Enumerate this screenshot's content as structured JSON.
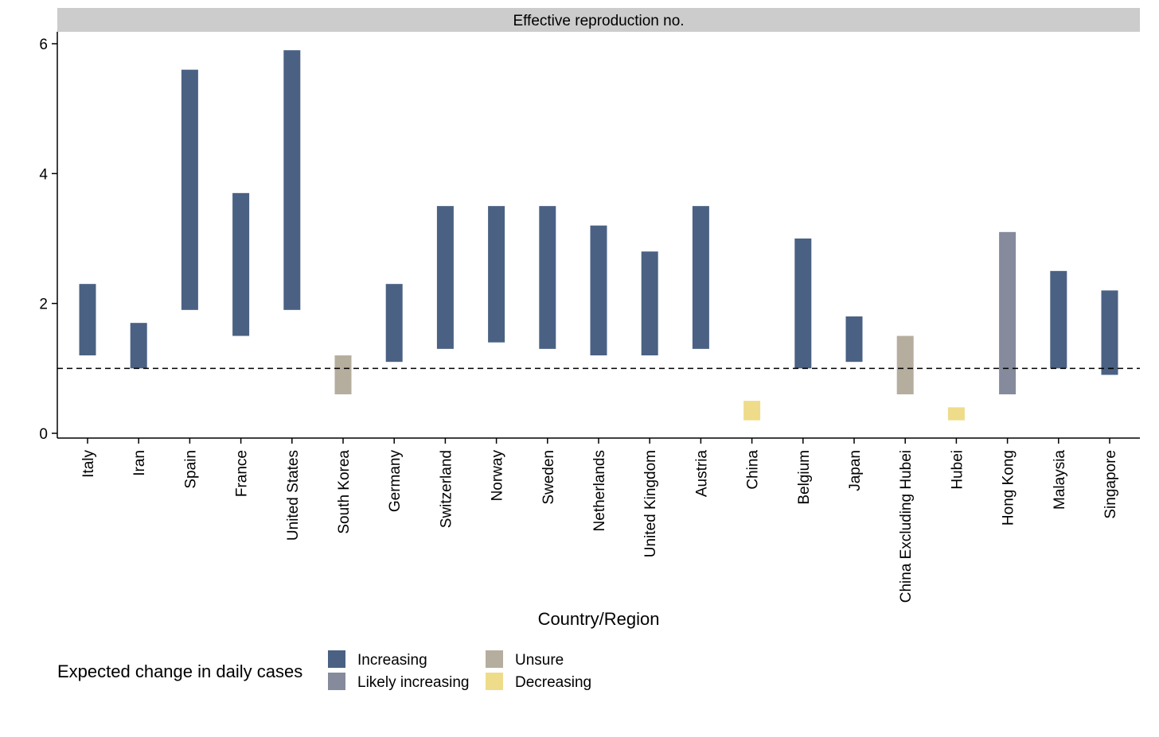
{
  "chart_data": {
    "type": "bar",
    "subtype": "floating-range",
    "facet_title": "Effective reproduction no.",
    "xlabel": "Country/Region",
    "ylabel": "",
    "ylim": [
      0,
      6.1
    ],
    "yticks": [
      0,
      2,
      4,
      6
    ],
    "reference_line": {
      "y": 1,
      "style": "dashed"
    },
    "categories": [
      "Italy",
      "Iran",
      "Spain",
      "France",
      "United States",
      "South Korea",
      "Germany",
      "Switzerland",
      "Norway",
      "Sweden",
      "Netherlands",
      "United Kingdom",
      "Austria",
      "China",
      "Belgium",
      "Japan",
      "China Excluding Hubei",
      "Hubei",
      "Hong Kong",
      "Malaysia",
      "Singapore"
    ],
    "ranges": [
      {
        "low": 1.2,
        "high": 2.3,
        "status": "Increasing"
      },
      {
        "low": 1.0,
        "high": 1.7,
        "status": "Increasing"
      },
      {
        "low": 1.9,
        "high": 5.6,
        "status": "Increasing"
      },
      {
        "low": 1.5,
        "high": 3.7,
        "status": "Increasing"
      },
      {
        "low": 1.9,
        "high": 5.9,
        "status": "Increasing"
      },
      {
        "low": 0.6,
        "high": 1.2,
        "status": "Unsure"
      },
      {
        "low": 1.1,
        "high": 2.3,
        "status": "Increasing"
      },
      {
        "low": 1.3,
        "high": 3.5,
        "status": "Increasing"
      },
      {
        "low": 1.4,
        "high": 3.5,
        "status": "Increasing"
      },
      {
        "low": 1.3,
        "high": 3.5,
        "status": "Increasing"
      },
      {
        "low": 1.2,
        "high": 3.2,
        "status": "Increasing"
      },
      {
        "low": 1.2,
        "high": 2.8,
        "status": "Increasing"
      },
      {
        "low": 1.3,
        "high": 3.5,
        "status": "Increasing"
      },
      {
        "low": 0.2,
        "high": 0.5,
        "status": "Decreasing"
      },
      {
        "low": 1.0,
        "high": 3.0,
        "status": "Increasing"
      },
      {
        "low": 1.1,
        "high": 1.8,
        "status": "Increasing"
      },
      {
        "low": 0.6,
        "high": 1.5,
        "status": "Unsure"
      },
      {
        "low": 0.2,
        "high": 0.4,
        "status": "Decreasing"
      },
      {
        "low": 0.6,
        "high": 3.1,
        "status": "Likely increasing"
      },
      {
        "low": 1.0,
        "high": 2.5,
        "status": "Increasing"
      },
      {
        "low": 0.9,
        "high": 2.2,
        "status": "Increasing"
      }
    ],
    "legend": {
      "title": "Expected change in daily cases",
      "placement": "bottom-left",
      "entries": [
        {
          "label": "Increasing",
          "color": "#4a6183"
        },
        {
          "label": "Likely increasing",
          "color": "#858b9c"
        },
        {
          "label": "Unsure",
          "color": "#b5ae9e"
        },
        {
          "label": "Decreasing",
          "color": "#eedc8a"
        }
      ]
    },
    "grid": false,
    "colors": {
      "panel_strip": "#cccccc",
      "axis": "#000000"
    }
  }
}
